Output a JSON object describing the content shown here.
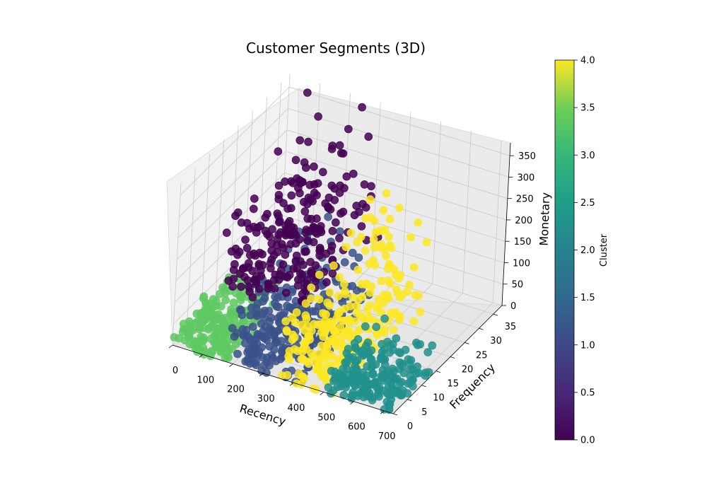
{
  "chart_data": {
    "type": "scatter",
    "projection": "3d",
    "title": "Customer Segments (3D)",
    "xlabel": "Recency",
    "ylabel": "Frequency",
    "zlabel": "Monetary",
    "xlim": [
      0,
      730
    ],
    "ylim": [
      0,
      38
    ],
    "zlim": [
      0,
      380
    ],
    "x_ticks": [
      "0",
      "100",
      "200",
      "300",
      "400",
      "500",
      "600",
      "700"
    ],
    "y_ticks": [
      "0",
      "5",
      "10",
      "15",
      "20",
      "25",
      "30",
      "35"
    ],
    "z_ticks": [
      "0",
      "50",
      "100",
      "150",
      "200",
      "250",
      "300",
      "350"
    ],
    "grid": true,
    "colorbar": {
      "label": "Cluster",
      "colormap": "viridis",
      "range": [
        0.0,
        4.0
      ],
      "ticks": [
        "0.0",
        "0.5",
        "1.0",
        "1.5",
        "2.0",
        "2.5",
        "3.0",
        "3.5",
        "4.0"
      ]
    },
    "clusters": [
      {
        "cluster": 0,
        "color": "#440154",
        "recency_range": [
          60,
          330
        ],
        "frequency_range": [
          10,
          37
        ],
        "monetary_range": [
          80,
          380
        ]
      },
      {
        "cluster": 1,
        "color": "#3b528b",
        "recency_range": [
          180,
          420
        ],
        "frequency_range": [
          0,
          25
        ],
        "monetary_range": [
          0,
          200
        ]
      },
      {
        "cluster": 2,
        "color": "#21918c",
        "recency_range": [
          500,
          730
        ],
        "frequency_range": [
          0,
          15
        ],
        "monetary_range": [
          0,
          90
        ]
      },
      {
        "cluster": 3,
        "color": "#5ec962",
        "recency_range": [
          0,
          180
        ],
        "frequency_range": [
          0,
          18
        ],
        "monetary_range": [
          0,
          90
        ]
      },
      {
        "cluster": 4,
        "color": "#fde725",
        "recency_range": [
          350,
          560
        ],
        "frequency_range": [
          0,
          33
        ],
        "monetary_range": [
          0,
          260
        ]
      }
    ]
  }
}
